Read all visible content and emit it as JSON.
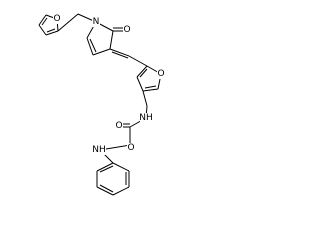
{
  "atoms": [
    {
      "label": "O"
    },
    {
      "label": "N"
    },
    {
      "label": "O"
    },
    {
      "label": "O"
    },
    {
      "label": "NH"
    },
    {
      "label": "O"
    },
    {
      "label": "O"
    },
    {
      "label": "NH"
    }
  ]
}
